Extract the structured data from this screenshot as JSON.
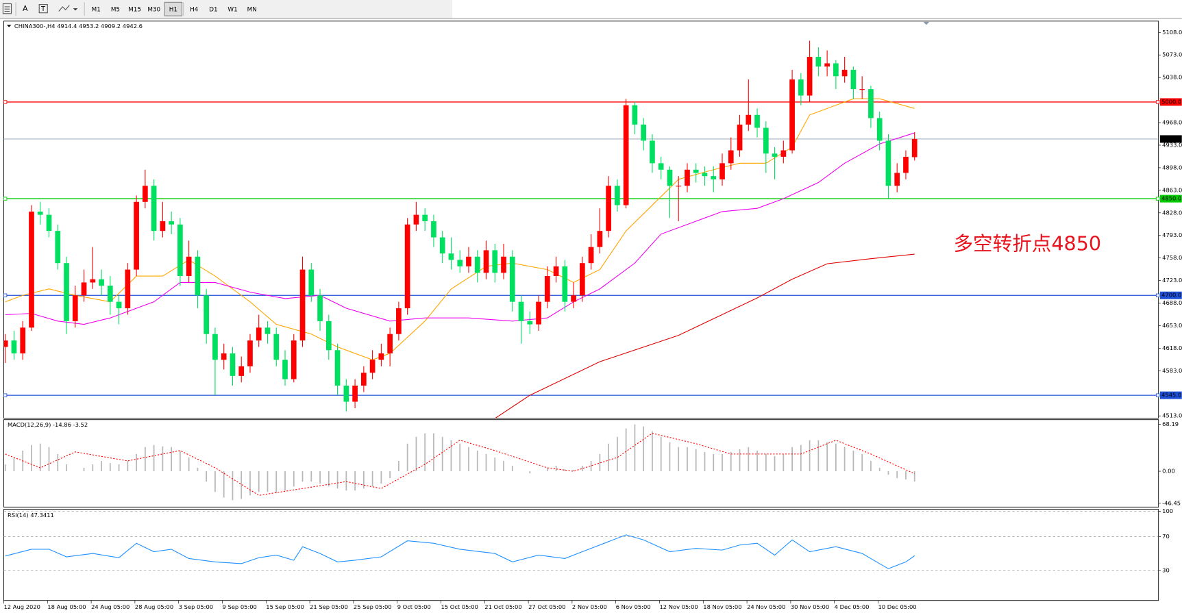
{
  "toolbar": {
    "timeframes": [
      "M1",
      "M5",
      "M15",
      "M30",
      "H1",
      "H4",
      "D1",
      "W1",
      "MN"
    ],
    "active": "H1"
  },
  "chart_data": [
    {
      "type": "candlestick",
      "title": "CHINA300-,H4  4914.4 4953.2 4909.2 4942.6",
      "categories": [
        "12 Aug 2020",
        null,
        null,
        null,
        null,
        "18 Aug 05:00",
        null,
        null,
        null,
        null,
        "24 Aug 05:00",
        null,
        null,
        null,
        null,
        "28 Aug 05:00",
        null,
        null,
        null,
        null,
        "3 Sep 05:00",
        null,
        null,
        null,
        null,
        "9 Sep 05:00",
        null,
        null,
        null,
        null,
        "15 Sep 05:00",
        null,
        null,
        null,
        null,
        "21 Sep 05:00",
        null,
        null,
        null,
        null,
        "25 Sep 05:00",
        null,
        null,
        null,
        null,
        "9 Oct 05:00",
        null,
        null,
        null,
        null,
        "15 Oct 05:00",
        null,
        null,
        null,
        null,
        "21 Oct 05:00",
        null,
        null,
        null,
        null,
        "27 Oct 05:00",
        null,
        null,
        null,
        null,
        "2 Nov 05:00",
        null,
        null,
        null,
        null,
        "6 Nov 05:00",
        null,
        null,
        null,
        null,
        "12 Nov 05:00",
        null,
        null,
        null,
        null,
        "18 Nov 05:00",
        null,
        null,
        null,
        null,
        "24 Nov 05:00",
        null,
        null,
        null,
        null,
        "30 Nov 05:00",
        null,
        null,
        null,
        null,
        "4 Dec 05:00",
        null,
        null,
        null,
        null,
        "10 Dec 05:00",
        null,
        null,
        null,
        null
      ],
      "open": [
        4620,
        4630,
        4610,
        4650,
        4830,
        4825,
        4800,
        4750,
        4660,
        4700,
        4720,
        4725,
        4715,
        4690,
        4680,
        4740,
        4845,
        4870,
        4800,
        4815,
        4810,
        4730,
        4760,
        4700,
        4640,
        4600,
        4610,
        4575,
        4590,
        4630,
        4650,
        4640,
        4600,
        4570,
        4630,
        4740,
        4700,
        4660,
        4615,
        4560,
        4535,
        4560,
        4580,
        4600,
        4610,
        4640,
        4680,
        4810,
        4825,
        4815,
        4790,
        4765,
        4755,
        4745,
        4760,
        4735,
        4770,
        4735,
        4760,
        4690,
        4660,
        4655,
        4690,
        4730,
        4745,
        4690,
        4700,
        4750,
        4775,
        4800,
        4870,
        4840,
        4995,
        4965,
        4940,
        4905,
        4895,
        4870,
        4870,
        4895,
        4890,
        4885,
        4880,
        4905,
        4925,
        4965,
        4980,
        4960,
        4920,
        4915,
        4925,
        5035,
        5010,
        5070,
        5055,
        5060,
        5040,
        5050,
        5020,
        5020,
        4975,
        4940,
        4870,
        4890,
        4914.4
      ],
      "high": [
        4640,
        4645,
        4660,
        4840,
        4845,
        4835,
        4810,
        4760,
        4715,
        4740,
        4775,
        4740,
        4730,
        4700,
        4750,
        4855,
        4895,
        4880,
        4845,
        4830,
        4820,
        4785,
        4770,
        4710,
        4650,
        4625,
        4620,
        4605,
        4640,
        4670,
        4660,
        4650,
        4615,
        4640,
        4760,
        4750,
        4710,
        4670,
        4625,
        4570,
        4570,
        4590,
        4615,
        4625,
        4650,
        4690,
        4820,
        4845,
        4835,
        4825,
        4800,
        4790,
        4770,
        4775,
        4770,
        4785,
        4780,
        4780,
        4770,
        4700,
        4675,
        4700,
        4745,
        4760,
        4755,
        4720,
        4760,
        4795,
        4835,
        4885,
        4880,
        5005,
        5000,
        4975,
        4950,
        4915,
        4900,
        4885,
        4905,
        4905,
        4900,
        4900,
        4920,
        4945,
        4980,
        5035,
        4990,
        4970,
        4930,
        4940,
        5050,
        5045,
        5095,
        5085,
        5080,
        5065,
        5070,
        5055,
        5040,
        5025,
        4985,
        4950,
        4905,
        4925,
        4953.2
      ],
      "low": [
        4595,
        4600,
        4600,
        4645,
        4810,
        4790,
        4740,
        4640,
        4650,
        4690,
        4710,
        4700,
        4670,
        4655,
        4670,
        4730,
        4835,
        4785,
        4790,
        4795,
        4715,
        4720,
        4680,
        4625,
        4545,
        4585,
        4560,
        4565,
        4580,
        4620,
        4625,
        4590,
        4560,
        4565,
        4620,
        4690,
        4645,
        4600,
        4545,
        4520,
        4525,
        4550,
        4570,
        4590,
        4590,
        4630,
        4670,
        4800,
        4800,
        4775,
        4750,
        4740,
        4735,
        4735,
        4720,
        4725,
        4720,
        4725,
        4675,
        4625,
        4640,
        4645,
        4680,
        4720,
        4675,
        4680,
        4690,
        4740,
        4765,
        4790,
        4830,
        4835,
        4950,
        4925,
        4890,
        4880,
        4820,
        4815,
        4860,
        4875,
        4870,
        4860,
        4870,
        4895,
        4915,
        4955,
        4945,
        4890,
        4880,
        4905,
        4920,
        4995,
        5000,
        5040,
        5040,
        5020,
        5030,
        5005,
        5005,
        4960,
        4925,
        4850,
        4860,
        4880,
        4909.2
      ],
      "close": [
        4630,
        4610,
        4650,
        4830,
        4825,
        4800,
        4750,
        4660,
        4700,
        4720,
        4725,
        4715,
        4690,
        4680,
        4740,
        4845,
        4870,
        4800,
        4815,
        4810,
        4730,
        4760,
        4700,
        4640,
        4600,
        4610,
        4575,
        4590,
        4630,
        4650,
        4640,
        4600,
        4570,
        4630,
        4740,
        4700,
        4660,
        4615,
        4560,
        4535,
        4560,
        4580,
        4600,
        4610,
        4640,
        4680,
        4810,
        4825,
        4815,
        4790,
        4765,
        4755,
        4745,
        4760,
        4735,
        4770,
        4735,
        4760,
        4690,
        4660,
        4655,
        4690,
        4730,
        4745,
        4690,
        4700,
        4750,
        4775,
        4800,
        4870,
        4840,
        4995,
        4965,
        4940,
        4905,
        4895,
        4870,
        4870,
        4895,
        4890,
        4885,
        4880,
        4905,
        4925,
        4965,
        4980,
        4960,
        4920,
        4915,
        4925,
        5035,
        5010,
        5070,
        5055,
        5060,
        5040,
        5050,
        5020,
        5020,
        4975,
        4940,
        4870,
        4890,
        4915,
        4942.6
      ],
      "up_color": "#ff0000",
      "down_color": "#00e060",
      "ylim": [
        4509.5,
        5125.5
      ],
      "yticks": [
        {
          "value": 5108,
          "label": "5108.0"
        },
        {
          "value": 5073,
          "label": "5073.0"
        },
        {
          "value": 5038,
          "label": "5038.0"
        },
        {
          "value": 4968,
          "label": "4968.0"
        },
        {
          "value": 4933,
          "label": "4933.0"
        },
        {
          "value": 4898,
          "label": "4898.0"
        },
        {
          "value": 4863,
          "label": "4863.0"
        },
        {
          "value": 4828,
          "label": "4828.0"
        },
        {
          "value": 4793,
          "label": "4793.0"
        },
        {
          "value": 4758,
          "label": "4758.0"
        },
        {
          "value": 4723,
          "label": "4723.0"
        },
        {
          "value": 4688,
          "label": "4688.0"
        },
        {
          "value": 4653,
          "label": "4653.0"
        },
        {
          "value": 4618,
          "label": "4618.0"
        },
        {
          "value": 4583,
          "label": "4583.0"
        },
        {
          "value": 4513,
          "label": "4513.0"
        }
      ],
      "levels": [
        {
          "value": 5000,
          "label": "5000.0",
          "color": "#ff0000"
        },
        {
          "value": 4850,
          "label": "4850.0",
          "color": "#00cc00"
        },
        {
          "value": 4700,
          "label": "4700.0",
          "color": "#1f4fd8"
        },
        {
          "value": 4545,
          "label": "4545.0",
          "color": "#1f4fd8"
        }
      ],
      "last_price": 4942.6,
      "series": [
        {
          "color": "#ffa500",
          "x": [
            0,
            2,
            5,
            8,
            12,
            15,
            18,
            21,
            24,
            28,
            31,
            35,
            38,
            42,
            44,
            48,
            51,
            55,
            58,
            62,
            65,
            68,
            71,
            74,
            77,
            81,
            84,
            87,
            90,
            92,
            95,
            97,
            100,
            104
          ],
          "values": [
            4690,
            4700,
            4710,
            4700,
            4690,
            4730,
            4730,
            4755,
            4730,
            4690,
            4655,
            4640,
            4620,
            4600,
            4610,
            4660,
            4710,
            4745,
            4750,
            4740,
            4720,
            4740,
            4800,
            4840,
            4880,
            4895,
            4905,
            4905,
            4930,
            4980,
            4995,
            5005,
            5005,
            4990
          ]
        },
        {
          "color": "#ee00ee",
          "x": [
            0,
            3,
            6,
            9,
            12,
            17,
            20,
            24,
            28,
            32,
            36,
            39,
            44,
            48,
            53,
            58,
            62,
            65,
            68,
            72,
            75,
            79,
            82,
            86,
            89,
            93,
            96,
            100,
            104
          ],
          "values": [
            4670,
            4672,
            4660,
            4655,
            4665,
            4690,
            4720,
            4720,
            4705,
            4695,
            4700,
            4680,
            4660,
            4665,
            4665,
            4660,
            4665,
            4690,
            4710,
            4750,
            4795,
            4815,
            4830,
            4835,
            4850,
            4875,
            4905,
            4935,
            4952
          ]
        },
        {
          "color": "#e00000",
          "x": [
            56,
            60,
            68,
            77,
            86,
            90,
            94,
            99,
            104
          ],
          "values": [
            4509,
            4545,
            4597,
            4638,
            4696,
            4725,
            4749,
            4757,
            4764
          ]
        }
      ],
      "annotation": "多空转折点4850"
    },
    {
      "type": "macd",
      "title": "MACD(12,26,9) -14.86 -3.52",
      "values": [
        10,
        20,
        30,
        38,
        40,
        35,
        25,
        10,
        0,
        5,
        10,
        15,
        12,
        10,
        15,
        25,
        35,
        38,
        36,
        35,
        30,
        20,
        5,
        -15,
        -30,
        -38,
        -42,
        -40,
        -35,
        -30,
        -30,
        -32,
        -28,
        -22,
        -15,
        -15,
        -18,
        -22,
        -25,
        -28,
        -28,
        -25,
        -22,
        -18,
        -10,
        15,
        40,
        50,
        55,
        55,
        50,
        45,
        40,
        35,
        30,
        25,
        20,
        15,
        8,
        0,
        -3,
        0,
        5,
        8,
        3,
        2,
        8,
        15,
        25,
        40,
        50,
        62,
        68,
        65,
        58,
        50,
        42,
        35,
        35,
        32,
        28,
        25,
        25,
        28,
        32,
        35,
        30,
        25,
        22,
        25,
        35,
        38,
        45,
        45,
        42,
        40,
        35,
        30,
        25,
        15,
        5,
        -5,
        -10,
        -12,
        -14.86
      ],
      "color": "#b8b8b8",
      "signal": {
        "color": "#ff0000",
        "x": [
          0,
          4,
          8,
          14,
          20,
          24,
          29,
          34,
          39,
          43,
          48,
          52,
          56,
          62,
          65,
          70,
          74,
          79,
          83,
          91,
          95,
          99,
          104
        ],
        "values": [
          25,
          5,
          28,
          15,
          30,
          5,
          -35,
          -25,
          -15,
          -25,
          10,
          45,
          30,
          5,
          0,
          20,
          55,
          40,
          25,
          25,
          45,
          25,
          -3.52
        ]
      },
      "ylim": [
        -51.9,
        74.8
      ],
      "yticks": [
        68.19,
        {
          "value": 0,
          "label": "0.00"
        },
        -46.45
      ]
    },
    {
      "type": "line",
      "title": "RSI(14) 47.3411",
      "x": [
        0,
        3,
        5,
        7,
        10,
        13,
        15,
        17,
        19,
        21,
        24,
        27,
        29,
        31,
        33,
        34,
        36,
        38,
        40,
        43,
        46,
        49,
        52,
        56,
        58,
        61,
        64,
        66,
        69,
        71,
        73,
        76,
        79,
        82,
        84,
        86,
        88,
        90,
        92,
        95,
        98,
        100,
        101,
        103,
        104
      ],
      "values": [
        47,
        55,
        55,
        46,
        50,
        45,
        62,
        52,
        55,
        44,
        40,
        38,
        45,
        48,
        42,
        58,
        50,
        40,
        42,
        46,
        65,
        62,
        55,
        50,
        40,
        48,
        44,
        52,
        64,
        72,
        66,
        52,
        56,
        54,
        60,
        62,
        48,
        66,
        52,
        58,
        50,
        38,
        32,
        40,
        47.3411
      ],
      "color": "#1e90ff",
      "ylim": [
        -5.6,
        102.2
      ],
      "yticks": [
        100,
        70,
        30
      ],
      "grid": true
    }
  ]
}
